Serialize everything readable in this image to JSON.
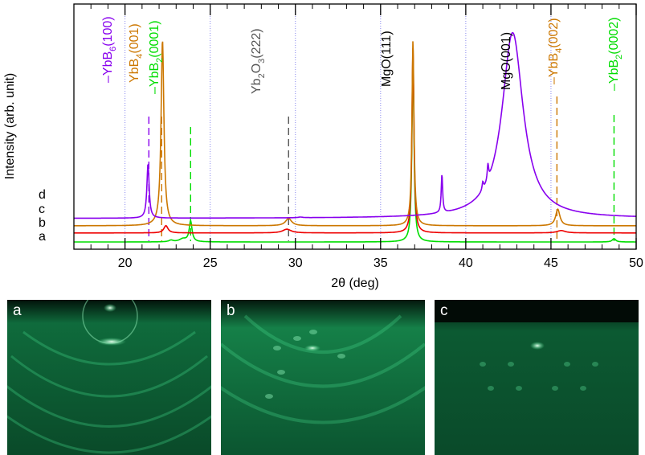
{
  "chart_data": {
    "type": "line",
    "xlabel": "2θ (deg)",
    "ylabel": "Intensity (arb. unit)",
    "xlim": [
      17,
      50
    ],
    "xticks": [
      20,
      25,
      30,
      35,
      40,
      45,
      50
    ],
    "xtick_labels": [
      "20",
      "25",
      "30",
      "35",
      "40",
      "45",
      "50"
    ],
    "yscale": "arbitrary (log-like, curves offset)",
    "series": [
      {
        "name": "a",
        "color": "#00dd00",
        "baseline": 0.0,
        "peaks": [
          {
            "x": 22.7,
            "height": 0.12,
            "width": 0.15
          },
          {
            "x": 23.4,
            "height": 0.22,
            "width": 0.25
          },
          {
            "x": 23.85,
            "height": 1.55,
            "width": 0.1
          },
          {
            "x": 36.9,
            "height": 14,
            "width": 0.07
          },
          {
            "x": 48.7,
            "height": 0.25,
            "width": 0.12
          }
        ]
      },
      {
        "name": "b",
        "color": "#ee0000",
        "baseline": 0.68,
        "peaks": [
          {
            "x": 22.4,
            "height": 0.55,
            "width": 0.15
          },
          {
            "x": 29.5,
            "height": 0.28,
            "width": 0.3
          },
          {
            "x": 36.9,
            "height": 14,
            "width": 0.07
          },
          {
            "x": 45.6,
            "height": 0.18,
            "width": 0.3
          }
        ]
      },
      {
        "name": "c",
        "color": "#cc7700",
        "baseline": 1.22,
        "peaks": [
          {
            "x": 22.2,
            "height": 14,
            "width": 0.1
          },
          {
            "x": 29.6,
            "height": 0.55,
            "width": 0.22
          },
          {
            "x": 36.9,
            "height": 14,
            "width": 0.07
          },
          {
            "x": 45.4,
            "height": 1.25,
            "width": 0.15
          }
        ]
      },
      {
        "name": "d",
        "color": "#8800ee",
        "baseline": 1.78,
        "peaks": [
          {
            "x": 21.35,
            "height": 4.1,
            "width": 0.08
          },
          {
            "x": 30.3,
            "height": 0.05,
            "width": 0.15
          },
          {
            "x": 38.6,
            "height": 2.9,
            "width": 0.05
          },
          {
            "x": 41.0,
            "height": 0.6,
            "width": 0.05
          },
          {
            "x": 41.3,
            "height": 1.2,
            "width": 0.05
          },
          {
            "x": 42.75,
            "height": 14,
            "width": 0.75
          }
        ]
      }
    ],
    "reference_lines": [
      {
        "label": "YbB6(100)",
        "x": 21.4,
        "color": "#8800ee"
      },
      {
        "label": "YbB4(001)",
        "x": 22.15,
        "color": "#cc7700"
      },
      {
        "label": "YbB2(0001)",
        "x": 23.85,
        "color": "#00dd00"
      },
      {
        "label": "Yb2O3(222)",
        "x": 29.6,
        "color": "#555555"
      },
      {
        "label": "YbB4(002)",
        "x": 45.35,
        "color": "#cc7700"
      },
      {
        "label": "YbB2(0002)",
        "x": 48.7,
        "color": "#00dd00"
      }
    ],
    "annotations": [
      {
        "text": "MgO(111)",
        "x": 36.9,
        "color": "#000000"
      },
      {
        "text": "MgO(001)",
        "x": 42.85,
        "color": "#000000"
      }
    ],
    "grid": "vertical dotted lines at x ticks"
  },
  "peak_labels": {
    "yb6_main": "YbB",
    "yb6_sub": "6",
    "yb6_hkl": "(100)",
    "yb4_main": "YbB",
    "yb4_sub": "4",
    "yb4_hkl": "(001)",
    "yb2_main": "YbB",
    "yb2_sub": "2",
    "yb2_hkl": "(0001)",
    "yb2o3_a": "Yb",
    "yb2o3_sub1": "2",
    "yb2o3_b": "O",
    "yb2o3_sub2": "3",
    "yb2o3_hkl": "(222)",
    "mgo111": "MgO(111)",
    "mgo001": "MgO(001)",
    "yb4b_main": "YbB",
    "yb4b_sub": "4",
    "yb4b_hkl": "(002)",
    "yb2b_main": "YbB",
    "yb2b_sub": "2",
    "yb2b_hkl": "(0002)"
  },
  "rheed_panels": [
    {
      "label": "a"
    },
    {
      "label": "b"
    },
    {
      "label": "c"
    }
  ]
}
